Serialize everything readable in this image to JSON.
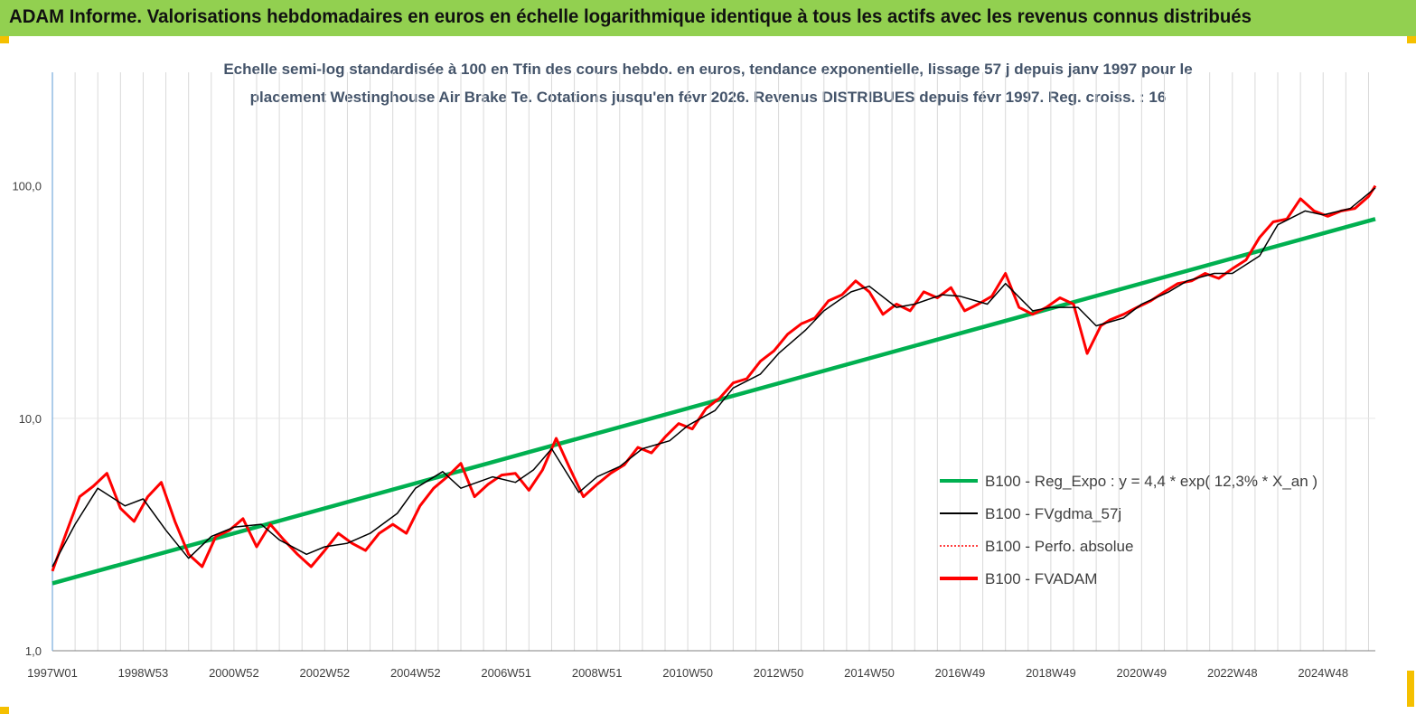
{
  "header": {
    "title": "ADAM Informe. Valorisations hebdomadaires en euros en échelle logarithmique identique à tous les actifs avec les revenus connus distribués"
  },
  "chart_data": {
    "type": "line",
    "title_line1": "Echelle semi-log standardisée à 100 en Tfin des cours hebdo. en euros, tendance exponentielle, lissage 57 j depuis janv 1997 pour le",
    "title_line2": "placement Westinghouse Air Brake Te.  Cotations jusqu'en févr 2026. Revenus DISTRIBUES depuis févr 1997. Reg. croiss. : 16",
    "yscale": "log",
    "ylim": [
      1,
      180
    ],
    "xlim": [
      1997.0,
      2026.15
    ],
    "y_ticks": [
      1,
      10,
      100
    ],
    "y_tick_labels": [
      "1,0",
      "10,0",
      "100,0"
    ],
    "x_ticks": [
      1997.0,
      1999.0,
      2001.0,
      2003.0,
      2005.0,
      2007.0,
      2009.0,
      2011.0,
      2013.0,
      2015.0,
      2017.0,
      2019.0,
      2021.0,
      2023.0,
      2025.0
    ],
    "x_tick_labels": [
      "1997W01",
      "1998W53",
      "2000W52",
      "2002W52",
      "2004W52",
      "2006W51",
      "2008W51",
      "2010W50",
      "2012W50",
      "2014W50",
      "2016W49",
      "2018W49",
      "2020W49",
      "2022W48",
      "2024W48"
    ],
    "vertical_grid": true,
    "legend_position": "bottom-right",
    "series": [
      {
        "name": "B100 - Reg_Expo : y = 4,4 * exp( 12,3% *  X_an )",
        "color": "#00b050",
        "style": "solid-thick",
        "x": [
          1997.0,
          2026.15
        ],
        "values": [
          1.95,
          72
        ]
      },
      {
        "name": "B100 - FVgdma_57j",
        "color": "#000000",
        "style": "solid-thin",
        "x": [
          1997.0,
          1997.5,
          1998.0,
          1998.6,
          1999.0,
          1999.5,
          2000.0,
          2000.5,
          2001.0,
          2001.6,
          2002.0,
          2002.6,
          2003.0,
          2003.5,
          2004.0,
          2004.6,
          2005.0,
          2005.6,
          2006.0,
          2006.7,
          2007.2,
          2007.6,
          2008.0,
          2008.6,
          2009.0,
          2009.5,
          2010.0,
          2010.6,
          2011.0,
          2011.6,
          2012.0,
          2012.6,
          2013.0,
          2013.6,
          2014.0,
          2014.6,
          2015.0,
          2015.6,
          2016.0,
          2016.6,
          2017.0,
          2017.6,
          2018.0,
          2018.6,
          2019.0,
          2019.6,
          2020.0,
          2020.6,
          2021.0,
          2021.6,
          2022.0,
          2022.6,
          2023.0,
          2023.6,
          2024.0,
          2024.6,
          2025.0,
          2025.6,
          2026.15
        ],
        "values": [
          2.3,
          3.5,
          5.0,
          4.2,
          4.5,
          3.3,
          2.5,
          3.1,
          3.4,
          3.5,
          3.0,
          2.6,
          2.8,
          2.9,
          3.2,
          3.9,
          5.0,
          5.9,
          5.0,
          5.6,
          5.3,
          6.0,
          7.4,
          4.8,
          5.6,
          6.2,
          7.4,
          8.0,
          9.3,
          10.8,
          13.5,
          15.5,
          19.0,
          24.0,
          29.0,
          35.0,
          37.0,
          30.0,
          31.0,
          34.0,
          33.5,
          31.0,
          38.0,
          29.0,
          30.0,
          30.0,
          25.0,
          27.0,
          31.0,
          35.0,
          39.0,
          42.0,
          42.0,
          50.0,
          68.0,
          78.0,
          75.0,
          80.0,
          98.0
        ]
      },
      {
        "name": "B100 - Perfo. absolue",
        "color": "#ff0000",
        "style": "dotted"
      },
      {
        "name": "B100 - FVADAM",
        "color": "#ff0000",
        "style": "solid-thick",
        "x": [
          1997.0,
          1997.3,
          1997.6,
          1997.9,
          1998.2,
          1998.5,
          1998.8,
          1999.1,
          1999.4,
          1999.7,
          2000.0,
          2000.3,
          2000.6,
          2000.9,
          2001.2,
          2001.5,
          2001.8,
          2002.1,
          2002.4,
          2002.7,
          2003.0,
          2003.3,
          2003.6,
          2003.9,
          2004.2,
          2004.5,
          2004.8,
          2005.1,
          2005.4,
          2005.7,
          2006.0,
          2006.3,
          2006.6,
          2006.9,
          2007.2,
          2007.5,
          2007.8,
          2008.1,
          2008.4,
          2008.7,
          2009.0,
          2009.3,
          2009.6,
          2009.9,
          2010.2,
          2010.5,
          2010.8,
          2011.1,
          2011.4,
          2011.7,
          2012.0,
          2012.3,
          2012.6,
          2012.9,
          2013.2,
          2013.5,
          2013.8,
          2014.1,
          2014.4,
          2014.7,
          2015.0,
          2015.3,
          2015.6,
          2015.9,
          2016.2,
          2016.5,
          2016.8,
          2017.1,
          2017.4,
          2017.7,
          2018.0,
          2018.3,
          2018.6,
          2018.9,
          2019.2,
          2019.5,
          2019.8,
          2020.1,
          2020.3,
          2020.6,
          2020.9,
          2021.2,
          2021.5,
          2021.8,
          2022.1,
          2022.4,
          2022.7,
          2023.0,
          2023.3,
          2023.6,
          2023.9,
          2024.2,
          2024.5,
          2024.8,
          2025.1,
          2025.4,
          2025.7,
          2026.0,
          2026.15
        ],
        "values": [
          2.2,
          3.2,
          4.6,
          5.1,
          5.8,
          4.1,
          3.6,
          4.6,
          5.3,
          3.6,
          2.6,
          2.3,
          3.1,
          3.3,
          3.7,
          2.8,
          3.5,
          3.0,
          2.6,
          2.3,
          2.7,
          3.2,
          2.9,
          2.7,
          3.2,
          3.5,
          3.2,
          4.2,
          5.0,
          5.6,
          6.4,
          4.6,
          5.2,
          5.7,
          5.8,
          4.9,
          6.0,
          8.2,
          6.1,
          4.6,
          5.2,
          5.8,
          6.3,
          7.5,
          7.1,
          8.3,
          9.5,
          9.0,
          11.0,
          12.2,
          14.2,
          14.8,
          17.6,
          19.5,
          23.0,
          25.5,
          27.0,
          32.0,
          34.0,
          39.0,
          35.0,
          28.0,
          31.0,
          29.0,
          35.0,
          33.0,
          36.5,
          29.0,
          31.0,
          33.5,
          42.0,
          30.0,
          28.0,
          30.0,
          33.0,
          31.0,
          19.0,
          25.0,
          26.5,
          28.0,
          30.0,
          32.0,
          35.0,
          38.0,
          39.0,
          42.0,
          40.0,
          44.0,
          48.0,
          60.0,
          70.0,
          72.0,
          88.0,
          78.0,
          74.0,
          78.0,
          80.0,
          90.0,
          100.0
        ]
      }
    ]
  }
}
